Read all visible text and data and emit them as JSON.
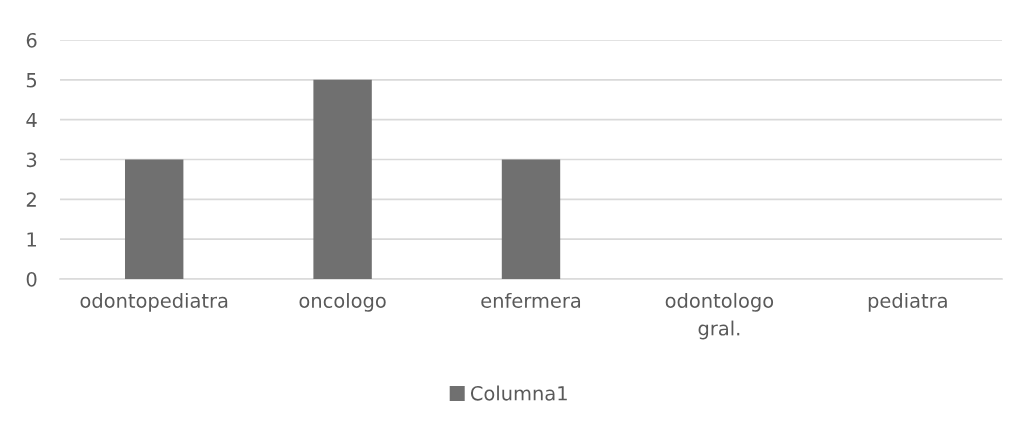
{
  "chart_data": {
    "type": "bar",
    "categories": [
      "odontopediatra",
      "oncologo",
      "enfermera",
      "odontologo gral.",
      "pediatra"
    ],
    "series": [
      {
        "name": "Columna1",
        "color": "#707070",
        "values": [
          3,
          5,
          3,
          null,
          null
        ]
      }
    ],
    "ylim": [
      0,
      6
    ],
    "yticks": [
      0,
      1,
      2,
      3,
      4,
      5,
      6
    ],
    "grid": "y",
    "legend": "bottom"
  }
}
